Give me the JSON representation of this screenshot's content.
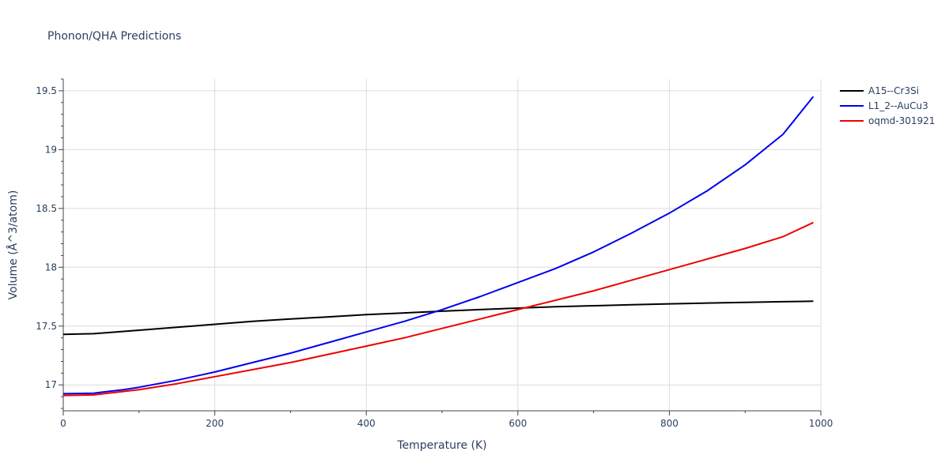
{
  "chart_data": {
    "type": "line",
    "title": "Phonon/QHA Predictions",
    "xlabel": "Temperature (K)",
    "ylabel": "Volume (Å^3/atom)",
    "xlim": [
      0,
      1000
    ],
    "ylim": [
      16.78,
      19.6
    ],
    "xticks": [
      0,
      200,
      400,
      600,
      800,
      1000
    ],
    "xtick_labels": [
      "0",
      "200",
      "400",
      "600",
      "800",
      "1000"
    ],
    "yticks": [
      17,
      17.5,
      18,
      18.5,
      19,
      19.5
    ],
    "ytick_labels": [
      "17",
      "17.5",
      "18",
      "18.5",
      "19",
      "19.5"
    ],
    "grid": true,
    "legend_position": "top-right",
    "series": [
      {
        "name": "A15--Cr3Si",
        "color": "#000000",
        "x": [
          0,
          40,
          100,
          150,
          200,
          250,
          300,
          350,
          400,
          450,
          500,
          550,
          600,
          650,
          700,
          750,
          800,
          850,
          900,
          950,
          990
        ],
        "y": [
          17.43,
          17.435,
          17.465,
          17.49,
          17.515,
          17.54,
          17.56,
          17.578,
          17.597,
          17.612,
          17.627,
          17.64,
          17.653,
          17.664,
          17.673,
          17.681,
          17.689,
          17.696,
          17.702,
          17.707,
          17.711
        ]
      },
      {
        "name": "L1_2--AuCu3",
        "color": "#0000ee",
        "x": [
          0,
          40,
          80,
          100,
          150,
          200,
          250,
          300,
          350,
          400,
          450,
          500,
          550,
          600,
          650,
          700,
          750,
          800,
          850,
          900,
          950,
          990
        ],
        "y": [
          16.925,
          16.93,
          16.96,
          16.98,
          17.04,
          17.11,
          17.19,
          17.27,
          17.36,
          17.45,
          17.54,
          17.64,
          17.75,
          17.87,
          17.99,
          18.13,
          18.29,
          18.46,
          18.65,
          18.87,
          19.13,
          19.45
        ]
      },
      {
        "name": "oqmd-301921",
        "color": "#ee0000",
        "x": [
          0,
          40,
          100,
          150,
          200,
          250,
          300,
          350,
          400,
          450,
          500,
          550,
          600,
          650,
          700,
          750,
          800,
          850,
          900,
          950,
          990
        ],
        "y": [
          16.91,
          16.915,
          16.96,
          17.01,
          17.07,
          17.13,
          17.19,
          17.26,
          17.33,
          17.4,
          17.48,
          17.56,
          17.64,
          17.72,
          17.8,
          17.89,
          17.98,
          18.07,
          18.16,
          18.26,
          18.38
        ]
      }
    ]
  }
}
